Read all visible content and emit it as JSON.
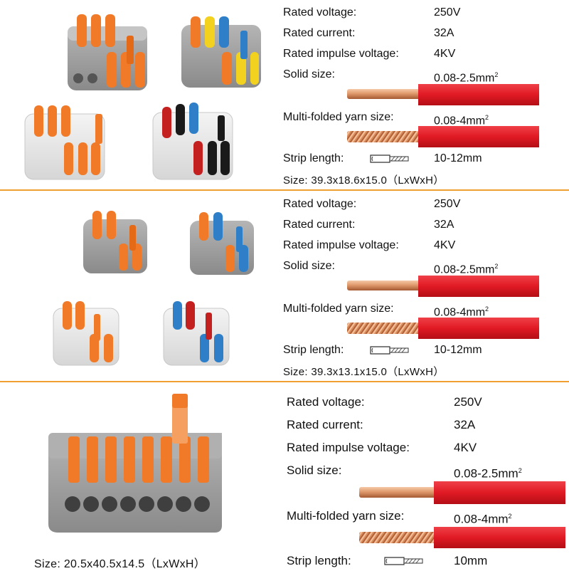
{
  "sections": [
    {
      "specs": [
        {
          "label": "Rated voltage:",
          "value": "250V"
        },
        {
          "label": "Rated current:",
          "value": "32A"
        },
        {
          "label": "Rated impulse voltage:",
          "value": "4KV"
        },
        {
          "label": "Solid size:",
          "value": "0.08-2.5mm",
          "sup": "2"
        },
        {
          "label": "Multi-folded yarn size:",
          "value": "0.08-4mm",
          "sup": "2"
        },
        {
          "label": "Strip length:",
          "value": "10-12mm"
        }
      ],
      "size": "Size:  39.3x18.6x15.0（LxWxH）"
    },
    {
      "specs": [
        {
          "label": "Rated voltage:",
          "value": "250V"
        },
        {
          "label": "Rated current:",
          "value": "32A"
        },
        {
          "label": "Rated impulse voltage:",
          "value": "4KV"
        },
        {
          "label": "Solid size:",
          "value": "0.08-2.5mm",
          "sup": "2"
        },
        {
          "label": "Multi-folded yarn size:",
          "value": "0.08-4mm",
          "sup": "2"
        },
        {
          "label": "Strip length:",
          "value": "10-12mm"
        }
      ],
      "size": "Size:  39.3x13.1x15.0（LxWxH）"
    },
    {
      "specs": [
        {
          "label": "Rated voltage:",
          "value": "250V"
        },
        {
          "label": "Rated current:",
          "value": "32A"
        },
        {
          "label": "Rated impulse voltage:",
          "value": "4KV"
        },
        {
          "label": "Solid size:",
          "value": "0.08-2.5mm",
          "sup": "2"
        },
        {
          "label": "Multi-folded yarn size:",
          "value": "0.08-4mm",
          "sup": "2"
        },
        {
          "label": "Strip length:",
          "value": "10mm"
        }
      ],
      "size": "Size:  20.5x40.5x14.5（LxWxH）"
    }
  ],
  "colors": {
    "divider": "#f0a030",
    "wire_insulation": "#e02028",
    "copper": "#d98a5a",
    "lever_orange": "#f07a28",
    "housing_gray": "#9a9a9a",
    "lever_yellow": "#f2d21e",
    "lever_blue": "#2f7fc8",
    "lever_black": "#1a1a1a",
    "lever_red": "#c42020"
  }
}
